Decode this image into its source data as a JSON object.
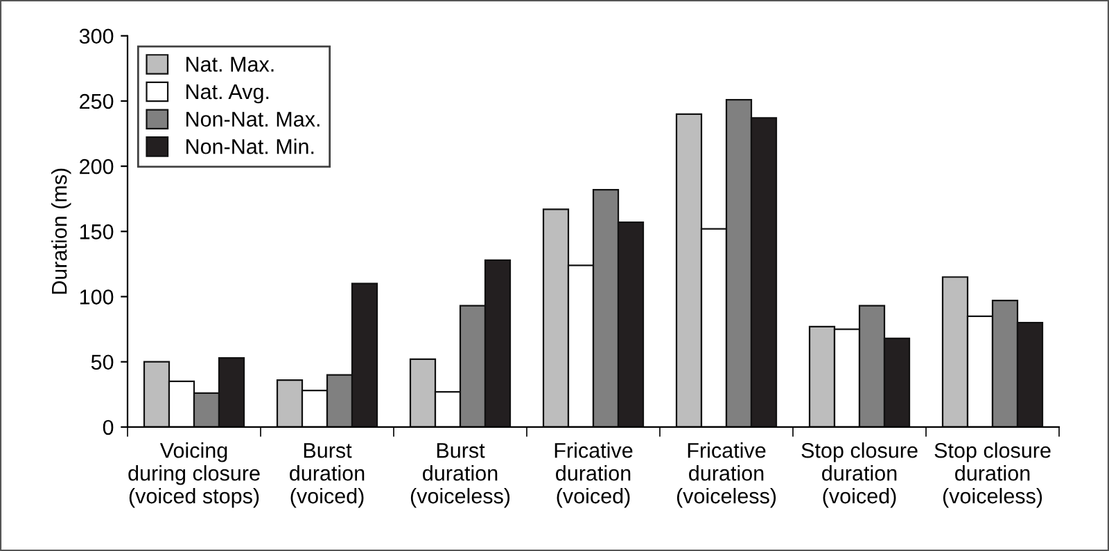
{
  "chart_data": {
    "type": "bar",
    "categories": [
      "Voicing\nduring closure\n(voiced stops)",
      "Burst\nduration\n(voiced)",
      "Burst\nduration\n(voiceless)",
      "Fricative\nduration\n(voiced)",
      "Fricative\nduration\n(voiceless)",
      "Stop closure\nduration\n(voiced)",
      "Stop closure\nduration\n(voiceless)"
    ],
    "series": [
      {
        "name": "Nat. Max.",
        "color": "#bdbdbd",
        "values": [
          50,
          36,
          52,
          167,
          240,
          77,
          115
        ]
      },
      {
        "name": "Nat. Avg.",
        "color": "#ffffff",
        "values": [
          35,
          28,
          27,
          124,
          152,
          75,
          85
        ]
      },
      {
        "name": "Non-Nat. Max.",
        "color": "#808080",
        "values": [
          26,
          40,
          93,
          182,
          251,
          93,
          97
        ]
      },
      {
        "name": "Non-Nat. Min.",
        "color": "#231f20",
        "values": [
          53,
          110,
          128,
          157,
          237,
          68,
          80
        ]
      }
    ],
    "ylabel": "Duration (ms)",
    "ylim": [
      0,
      300
    ],
    "yticks": [
      0,
      50,
      100,
      150,
      200,
      250,
      300
    ],
    "legend": "top left",
    "grid": false
  }
}
